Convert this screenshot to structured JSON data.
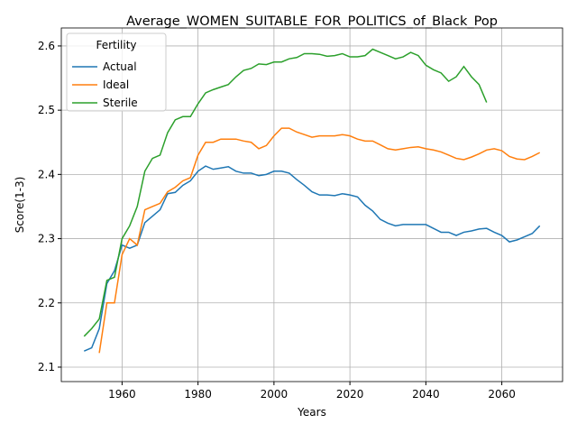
{
  "chart_data": {
    "type": "line",
    "title": "Average_WOMEN_SUITABLE_FOR_POLITICS_of_Black_Pop",
    "xlabel": "Years",
    "ylabel": "Score(1-3)",
    "legend_title": "Fertility",
    "legend": "upper left",
    "grid": true,
    "x": [
      1950,
      1952,
      1954,
      1956,
      1958,
      1960,
      1962,
      1964,
      1966,
      1968,
      1970,
      1972,
      1974,
      1976,
      1978,
      1980,
      1982,
      1984,
      1986,
      1988,
      1990,
      1992,
      1994,
      1996,
      1998,
      2000,
      2002,
      2004,
      2006,
      2008,
      2010,
      2012,
      2014,
      2016,
      2018,
      2020,
      2022,
      2024,
      2026,
      2028,
      2030,
      2032,
      2034,
      2036,
      2038,
      2040,
      2042,
      2044,
      2046,
      2048,
      2050,
      2052,
      2054,
      2056,
      2058,
      2060,
      2062,
      2064,
      2066,
      2068,
      2070
    ],
    "series": [
      {
        "name": "Actual",
        "color": "#1f77b4",
        "values": [
          2.125,
          2.13,
          2.16,
          2.23,
          2.25,
          2.29,
          2.285,
          2.29,
          2.325,
          2.335,
          2.345,
          2.37,
          2.372,
          2.383,
          2.39,
          2.405,
          2.413,
          2.408,
          2.41,
          2.412,
          2.405,
          2.402,
          2.402,
          2.398,
          2.4,
          2.405,
          2.405,
          2.402,
          2.392,
          2.383,
          2.373,
          2.368,
          2.368,
          2.367,
          2.37,
          2.368,
          2.365,
          2.352,
          2.343,
          2.33,
          2.324,
          2.32,
          2.322,
          2.322,
          2.322,
          2.322,
          2.316,
          2.31,
          2.31,
          2.305,
          2.31,
          2.312,
          2.315,
          2.316,
          2.31,
          2.305,
          2.295,
          2.298,
          2.303,
          2.308,
          2.32
        ]
      },
      {
        "name": "Ideal",
        "color": "#ff7f0e",
        "values": [
          null,
          null,
          2.122,
          2.2,
          2.2,
          2.275,
          2.3,
          2.29,
          2.345,
          2.35,
          2.355,
          2.373,
          2.38,
          2.39,
          2.395,
          2.43,
          2.45,
          2.45,
          2.455,
          2.455,
          2.455,
          2.452,
          2.45,
          2.44,
          2.445,
          2.46,
          2.472,
          2.472,
          2.466,
          2.462,
          2.458,
          2.46,
          2.46,
          2.46,
          2.462,
          2.46,
          2.455,
          2.452,
          2.452,
          2.446,
          2.44,
          2.438,
          2.44,
          2.442,
          2.443,
          2.44,
          2.438,
          2.435,
          2.43,
          2.425,
          2.423,
          2.427,
          2.432,
          2.438,
          2.44,
          2.437,
          2.428,
          2.424,
          2.423,
          2.428,
          2.434
        ]
      },
      {
        "name": "Sterile",
        "color": "#2ca02c",
        "values": [
          2.148,
          2.16,
          2.175,
          2.235,
          2.24,
          2.3,
          2.32,
          2.35,
          2.405,
          2.425,
          2.43,
          2.465,
          2.485,
          2.49,
          2.49,
          2.51,
          2.527,
          2.532,
          2.536,
          2.54,
          2.552,
          2.562,
          2.565,
          2.572,
          2.571,
          2.575,
          2.575,
          2.58,
          2.582,
          2.588,
          2.588,
          2.587,
          2.584,
          2.585,
          2.588,
          2.583,
          2.583,
          2.585,
          2.595,
          2.59,
          2.585,
          2.58,
          2.583,
          2.59,
          2.585,
          2.57,
          2.563,
          2.558,
          2.545,
          2.552,
          2.568,
          2.552,
          2.54,
          2.512,
          null,
          null,
          null,
          null,
          null,
          null,
          null
        ]
      }
    ],
    "xlim": [
      1944,
      2076
    ],
    "xticks": [
      1960,
      1980,
      2000,
      2020,
      2040,
      2060
    ],
    "ylim": [
      2.0775,
      2.628
    ],
    "yticks": [
      2.1,
      2.2,
      2.3,
      2.4,
      2.5,
      2.6
    ]
  }
}
